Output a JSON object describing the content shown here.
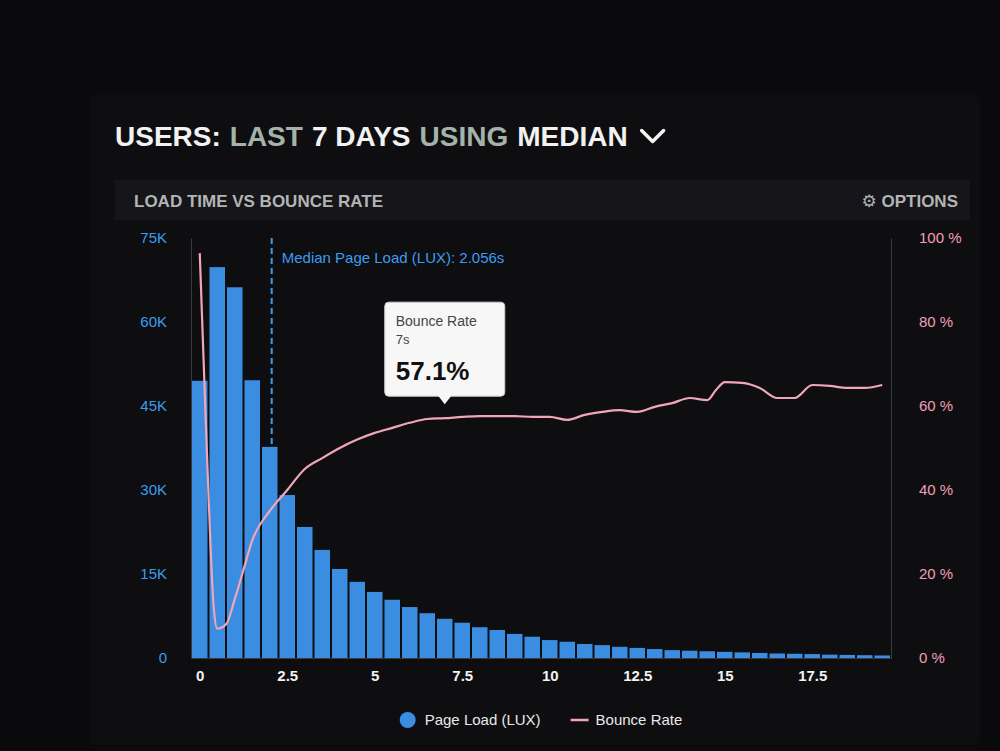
{
  "chart_data": {
    "type": "histogram",
    "title_parts": [
      {
        "text": "USERS:",
        "color": "#f2f2f2"
      },
      {
        "text": "LAST",
        "color": "#a3b3a9"
      },
      {
        "text": "7 DAYS",
        "color": "#f2f2f2"
      },
      {
        "text": "USING",
        "color": "#a3b3a9"
      },
      {
        "text": "MEDIAN",
        "color": "#f2f2f2"
      }
    ],
    "subtitle": "LOAD TIME VS BOUNCE RATE",
    "options": "⚙ OPTIONS",
    "xlim": [
      -0.25,
      19.75
    ],
    "xticks": [
      0,
      2.5,
      5,
      7.5,
      10,
      12.5,
      15,
      17.5
    ],
    "ylim": [
      0,
      75000
    ],
    "yticks": [
      0,
      {
        "value": 15000,
        "label": "15K"
      },
      {
        "value": 30000,
        "label": "30K"
      },
      {
        "value": 45000,
        "label": "45K"
      },
      {
        "value": 60000,
        "label": "60K"
      },
      {
        "value": 75000,
        "label": "75K"
      }
    ],
    "y2lim": [
      0,
      100
    ],
    "y2ticks": [
      {
        "value": 0,
        "label": "0 %"
      },
      {
        "value": 20,
        "label": "20 %"
      },
      {
        "value": 40,
        "label": "40 %"
      },
      {
        "value": 60,
        "label": "60 %"
      },
      {
        "value": 80,
        "label": "80 %"
      },
      {
        "value": 100,
        "label": "100 %"
      }
    ],
    "grid": false,
    "legend": "bottom",
    "series": [
      {
        "name": "Page Load (LUX)",
        "type": "bar",
        "color": "#3b8de2",
        "bins": [
          -0.25,
          0.25,
          0.75,
          1.25,
          1.75,
          2.25,
          2.75,
          3.25,
          3.75,
          4.25,
          4.75,
          5.25,
          5.75,
          6.25,
          6.75,
          7.25,
          7.75,
          8.25,
          8.75,
          9.25,
          9.75,
          10.25,
          10.75,
          11.25,
          11.75,
          12.25,
          12.75,
          13.25,
          13.75,
          14.25,
          14.75,
          15.25,
          15.75,
          16.25,
          16.75,
          17.25,
          17.75,
          18.25,
          18.75,
          19.25,
          19.75
        ],
        "values": [
          49500,
          69800,
          66200,
          49600,
          37700,
          29100,
          23400,
          19300,
          15900,
          13600,
          11800,
          10400,
          9100,
          8000,
          7000,
          6300,
          5500,
          5000,
          4300,
          3800,
          3200,
          2900,
          2500,
          2300,
          2000,
          1800,
          1600,
          1400,
          1300,
          1200,
          1100,
          1000,
          900,
          800,
          750,
          700,
          600,
          550,
          500,
          450
        ]
      },
      {
        "name": "Bounce Rate",
        "type": "line",
        "axis": "y2",
        "color": "#f3a5b8",
        "x": [
          0,
          0.2,
          0.4,
          0.5,
          0.75,
          1,
          1.25,
          1.5,
          2,
          2.5,
          3,
          3.5,
          4,
          4.5,
          5,
          5.5,
          6,
          6.5,
          7,
          7.5,
          8,
          8.5,
          9,
          9.5,
          10,
          10.5,
          11,
          11.5,
          12,
          12.5,
          13,
          13.5,
          14,
          14.5,
          14.75,
          15,
          15.5,
          16,
          16.5,
          17,
          17.5,
          18,
          18.5,
          19,
          19.5
        ],
        "values": [
          96.4,
          50,
          12,
          7,
          8,
          14,
          21,
          28,
          35,
          40,
          45,
          47.6,
          50,
          52,
          53.6,
          54.8,
          56,
          56.9,
          57.1,
          57.4,
          57.6,
          57.6,
          57.6,
          57.4,
          57.4,
          56.7,
          57.9,
          58.6,
          59,
          58.6,
          59.8,
          60.7,
          61.9,
          61.4,
          63.8,
          65.7,
          65.5,
          64.3,
          61.9,
          61.9,
          65,
          64.8,
          64.3,
          64.3,
          65
        ]
      }
    ],
    "annotations": [
      {
        "x": 2.056,
        "text": "Median Page Load (LUX): 2.056s",
        "color": "#3c9cf0"
      },
      {
        "x": 7,
        "y": 57.1,
        "title": "Bounce Rate",
        "x_label": "7s",
        "y_label": "57.1%"
      }
    ]
  }
}
